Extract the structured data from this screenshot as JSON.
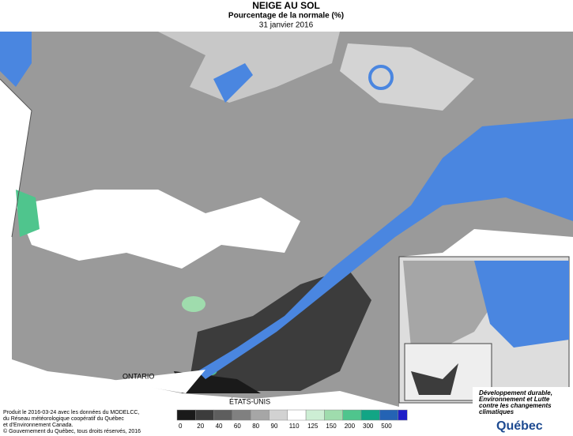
{
  "header": {
    "title": "NEIGE AU SOL",
    "subtitle": "Pourcentage de la normale (%)",
    "date": "31 janvier 2016"
  },
  "map": {
    "labels": [
      "ONTARIO",
      "ÉTATS-UNIS"
    ]
  },
  "legend": {
    "ticks": [
      0,
      20,
      40,
      60,
      80,
      90,
      110,
      125,
      150,
      200,
      300,
      500
    ],
    "colors": [
      "#1a1a1a",
      "#3c3c3c",
      "#5e5e5e",
      "#808080",
      "#a6a6a6",
      "#d2d2d2",
      "#ffffff",
      "#cdeed4",
      "#9fdcad",
      "#4fc58d",
      "#12a585",
      "#2463b4"
    ],
    "last_color": "#1e1ec8"
  },
  "credits": {
    "lines": [
      "Produit le 2016-03-24 avec les données du MODELCC,",
      "du Réseau météorologique coopératif du Québec",
      "et d'Environnement Canada."
    ],
    "copyright": "© Gouvernement du Québec, tous droits réservés, 2016"
  },
  "logo": {
    "ministry": [
      "Développement durable,",
      "Environnement et Lutte",
      "contre les changements",
      "climatiques"
    ],
    "name": "Québec"
  }
}
